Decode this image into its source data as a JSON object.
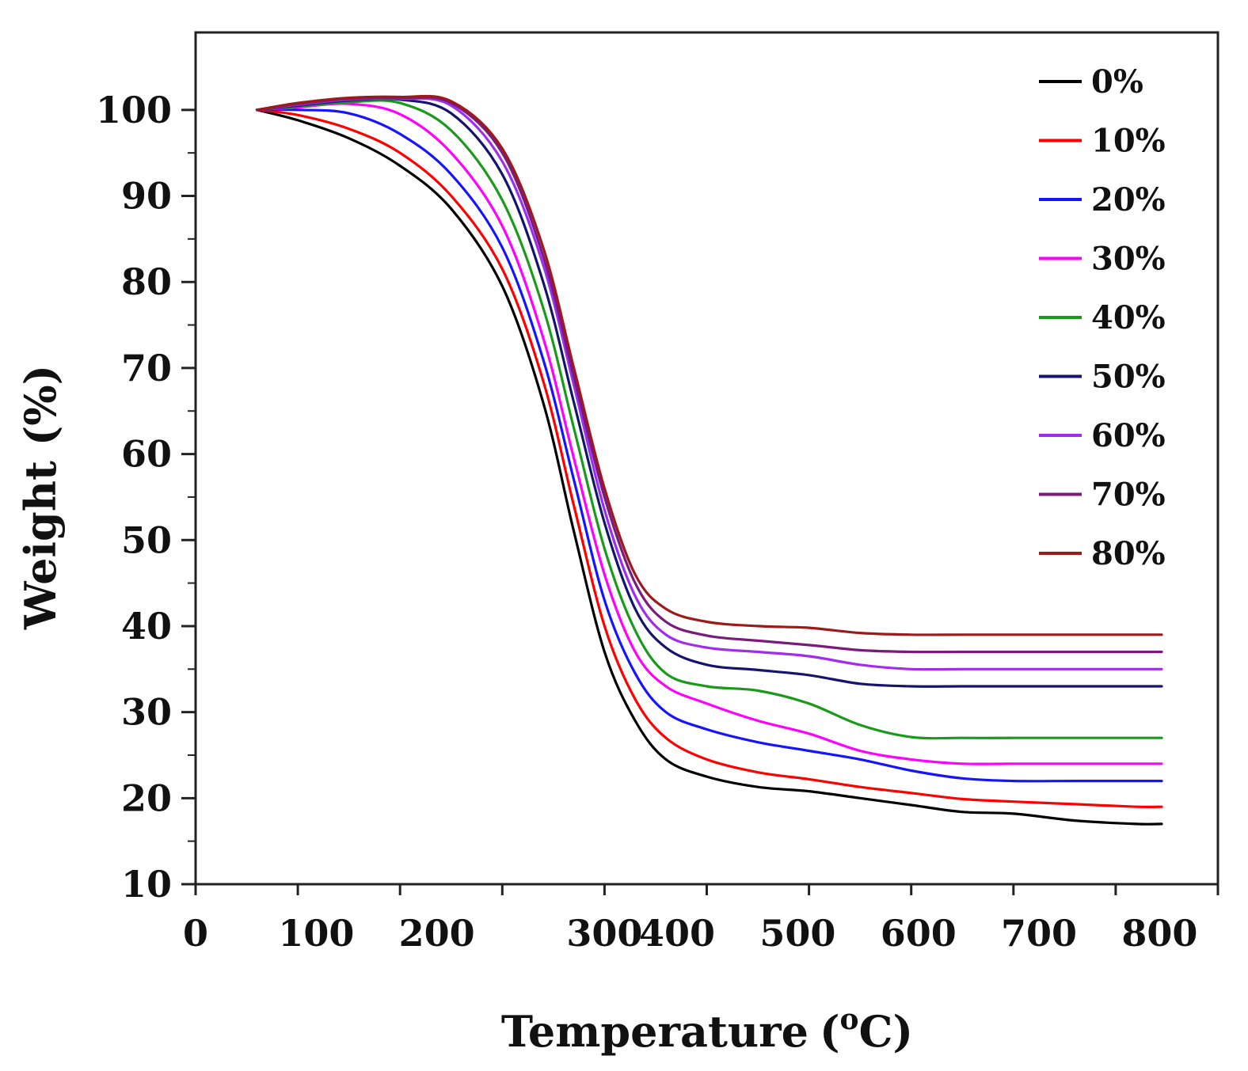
{
  "chart_data": {
    "type": "line",
    "title": "",
    "xlabel": "Temperature",
    "xlabel_unit_prefix": "(",
    "xlabel_unit_super": "o",
    "xlabel_unit_suffix": "C)",
    "ylabel": "Weight (%)",
    "xlim": [
      0,
      1000
    ],
    "ylim": [
      10,
      109
    ],
    "x_ticks": [
      {
        "value": 0,
        "label": "0"
      },
      {
        "value": 100,
        "label": "100"
      },
      {
        "value": 200,
        "label": "200"
      },
      {
        "value": 300,
        "label": "300"
      },
      {
        "value": 400,
        "label": "400"
      },
      {
        "value": 500,
        "label": "500"
      },
      {
        "value": 600,
        "label": "600"
      },
      {
        "value": 700,
        "label": "700"
      },
      {
        "value": 800,
        "label": "800"
      }
    ],
    "x_tick_label_values": [
      0,
      118,
      236,
      400,
      471,
      589,
      707,
      825,
      943
    ],
    "x_minor_ticks": [
      100,
      200,
      300,
      400,
      500,
      600,
      700,
      800,
      900,
      1000
    ],
    "y_ticks": [
      {
        "value": 10,
        "label": "10"
      },
      {
        "value": 20,
        "label": "20"
      },
      {
        "value": 30,
        "label": "30"
      },
      {
        "value": 40,
        "label": "40"
      },
      {
        "value": 50,
        "label": "50"
      },
      {
        "value": 60,
        "label": "60"
      },
      {
        "value": 70,
        "label": "70"
      },
      {
        "value": 80,
        "label": "80"
      },
      {
        "value": 90,
        "label": "90"
      },
      {
        "value": 100,
        "label": "100"
      }
    ],
    "legend_position": "top-right",
    "series": [
      {
        "name": "0%",
        "color": "#000000",
        "x": [
          60,
          100,
          150,
          200,
          250,
          300,
          340,
          370,
          400,
          430,
          460,
          500,
          550,
          600,
          650,
          700,
          750,
          800,
          860,
          920,
          945
        ],
        "y": [
          100,
          98.8,
          96.7,
          93.5,
          88.5,
          79.5,
          66,
          51,
          37,
          29,
          24.5,
          22.5,
          21.3,
          20.8,
          20,
          19.2,
          18.4,
          18.2,
          17.4,
          17,
          17
        ]
      },
      {
        "name": "10%",
        "color": "#ff0000",
        "x": [
          60,
          100,
          150,
          200,
          250,
          300,
          340,
          370,
          400,
          430,
          460,
          500,
          550,
          600,
          650,
          700,
          750,
          800,
          860,
          920,
          945
        ],
        "y": [
          100,
          99.4,
          97.8,
          95,
          90,
          81.5,
          68.5,
          54,
          40,
          31.5,
          27,
          24.5,
          23,
          22.2,
          21.3,
          20.6,
          19.9,
          19.6,
          19.3,
          19,
          19
        ]
      },
      {
        "name": "20%",
        "color": "#1414ff",
        "x": [
          60,
          100,
          150,
          200,
          250,
          300,
          340,
          370,
          400,
          430,
          460,
          500,
          550,
          600,
          650,
          700,
          750,
          800,
          860,
          920,
          945
        ],
        "y": [
          100,
          100,
          99.6,
          97.2,
          92.5,
          84,
          71,
          57,
          43,
          34.5,
          30,
          28,
          26.5,
          25.5,
          24.5,
          23.2,
          22.3,
          22,
          22,
          22,
          22
        ]
      },
      {
        "name": "30%",
        "color": "#ff00ff",
        "x": [
          60,
          100,
          150,
          200,
          250,
          300,
          340,
          370,
          400,
          430,
          460,
          500,
          550,
          600,
          650,
          700,
          750,
          800,
          860,
          920,
          945
        ],
        "y": [
          100,
          100.3,
          100.7,
          99.5,
          95,
          86.5,
          73.5,
          59.5,
          46,
          37,
          33,
          31,
          29,
          27.5,
          25.5,
          24.5,
          24,
          24,
          24,
          24,
          24
        ]
      },
      {
        "name": "40%",
        "color": "#1a9a1a",
        "x": [
          60,
          100,
          150,
          200,
          250,
          300,
          340,
          370,
          400,
          430,
          460,
          500,
          550,
          600,
          650,
          700,
          750,
          800,
          860,
          920,
          945
        ],
        "y": [
          100,
          100.4,
          100.9,
          100.8,
          97.6,
          89.5,
          77,
          63,
          49,
          39.5,
          34.5,
          33,
          32.5,
          31,
          28.5,
          27.1,
          27,
          27,
          27,
          27,
          27
        ]
      },
      {
        "name": "50%",
        "color": "#14146e",
        "x": [
          60,
          100,
          150,
          200,
          250,
          300,
          340,
          370,
          400,
          430,
          460,
          500,
          550,
          600,
          650,
          700,
          750,
          800,
          860,
          920,
          945
        ],
        "y": [
          100,
          100.5,
          101.1,
          101.2,
          99.6,
          92.5,
          80,
          66,
          52,
          42,
          37.5,
          35.5,
          34.9,
          34.3,
          33.3,
          33,
          33,
          33,
          33,
          33,
          33
        ]
      },
      {
        "name": "60%",
        "color": "#a12cf0",
        "x": [
          60,
          100,
          150,
          200,
          250,
          300,
          340,
          370,
          400,
          430,
          460,
          500,
          550,
          600,
          650,
          700,
          750,
          800,
          860,
          920,
          945
        ],
        "y": [
          100,
          100.6,
          101.2,
          101.3,
          100.5,
          94,
          82,
          68,
          53.5,
          43.5,
          39,
          37.5,
          37,
          36.5,
          35.5,
          35,
          35,
          35,
          35,
          35,
          35
        ]
      },
      {
        "name": "70%",
        "color": "#7a1a7a",
        "x": [
          60,
          100,
          150,
          200,
          250,
          300,
          340,
          370,
          400,
          430,
          460,
          500,
          550,
          600,
          650,
          700,
          750,
          800,
          860,
          920,
          945
        ],
        "y": [
          100,
          100.7,
          101.3,
          101.4,
          100.8,
          95,
          83,
          69,
          55,
          45,
          40.5,
          38.9,
          38.3,
          37.8,
          37.2,
          37,
          37,
          37,
          37,
          37,
          37
        ]
      },
      {
        "name": "80%",
        "color": "#9b1a1a",
        "x": [
          60,
          100,
          150,
          200,
          250,
          300,
          340,
          370,
          400,
          430,
          460,
          500,
          550,
          600,
          650,
          700,
          750,
          800,
          860,
          920,
          945
        ],
        "y": [
          100,
          100.8,
          101.4,
          101.5,
          101,
          95.5,
          84,
          70,
          56,
          46,
          42,
          40.5,
          40,
          39.8,
          39.2,
          39,
          39,
          39,
          39,
          39,
          39
        ]
      }
    ]
  }
}
